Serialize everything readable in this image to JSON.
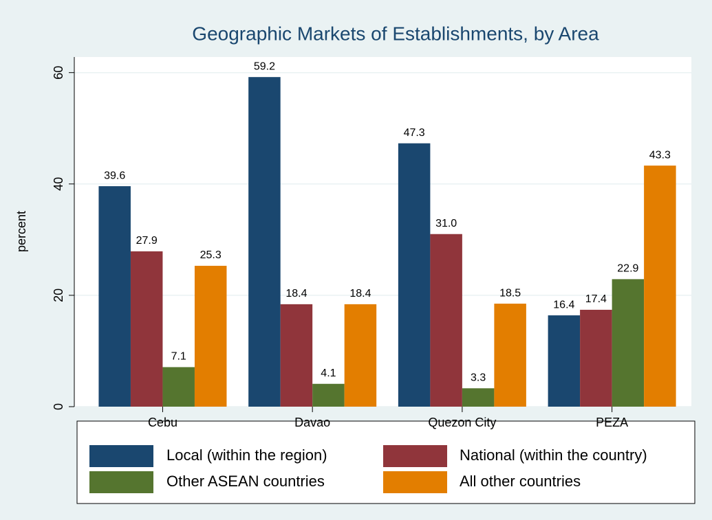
{
  "chart_data": {
    "type": "bar",
    "title": "Geographic Markets of Establishments, by Area",
    "y_label": "percent",
    "categories": [
      "Cebu",
      "Davao",
      "Quezon City",
      "PEZA"
    ],
    "series": [
      {
        "name": "Local (within the region)",
        "color": "#1a476f",
        "values": [
          39.6,
          59.2,
          47.3,
          16.4
        ],
        "value_labels": [
          "39.6",
          "59.2",
          "47.3",
          "16.4"
        ]
      },
      {
        "name": "National  (within the country)",
        "color": "#90353b",
        "values": [
          27.9,
          18.4,
          31.0,
          17.4
        ],
        "value_labels": [
          "27.9",
          "18.4",
          "31.0",
          "17.4"
        ]
      },
      {
        "name": "Other ASEAN countries",
        "color": "#55752f",
        "values": [
          7.1,
          4.1,
          3.3,
          22.9
        ],
        "value_labels": [
          "7.1",
          "4.1",
          "3.3",
          "22.9"
        ]
      },
      {
        "name": "All other countries",
        "color": "#e37e00",
        "values": [
          25.3,
          18.4,
          18.5,
          43.3
        ],
        "value_labels": [
          "25.3",
          "18.4",
          "18.5",
          "43.3"
        ]
      }
    ],
    "ylim": [
      0,
      62.8
    ],
    "yticks": [
      0,
      20,
      40,
      60
    ],
    "grid": true
  }
}
